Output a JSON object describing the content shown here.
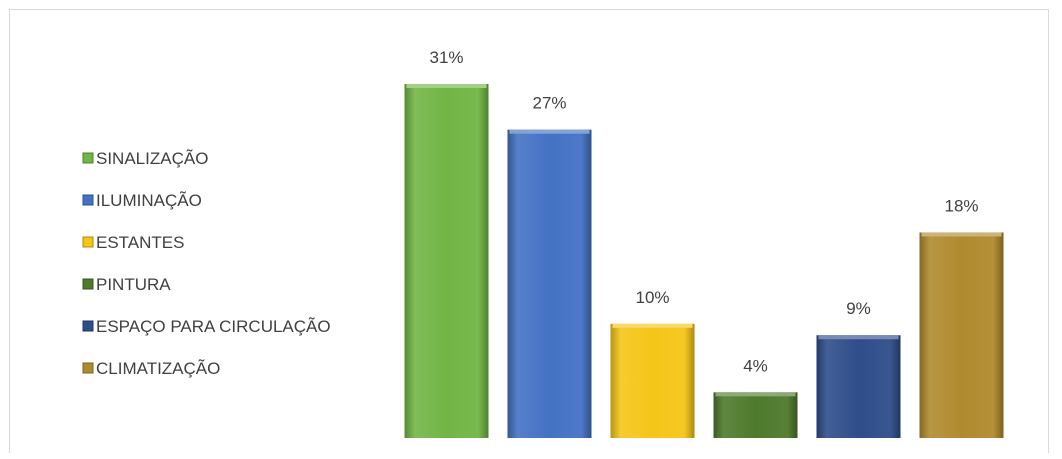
{
  "chart_data": {
    "type": "bar",
    "categories": [
      "SINALIZAÇÃO",
      "ILUMINAÇÃO",
      "ESTANTES",
      "PINTURA",
      "ESPAÇO PARA CIRCULAÇÃO",
      "CLIMATIZAÇÃO"
    ],
    "values": [
      31,
      27,
      10,
      4,
      9,
      18
    ],
    "value_labels": [
      "31%",
      "27%",
      "10%",
      "4%",
      "9%",
      "18%"
    ],
    "colors": [
      "#72b545",
      "#4472c4",
      "#f5c518",
      "#4e7a2c",
      "#2f4d8a",
      "#b08a2e"
    ],
    "title": "",
    "xlabel": "",
    "ylabel": "",
    "ylim": [
      0,
      33
    ],
    "grid": false,
    "legend_position": "left"
  }
}
